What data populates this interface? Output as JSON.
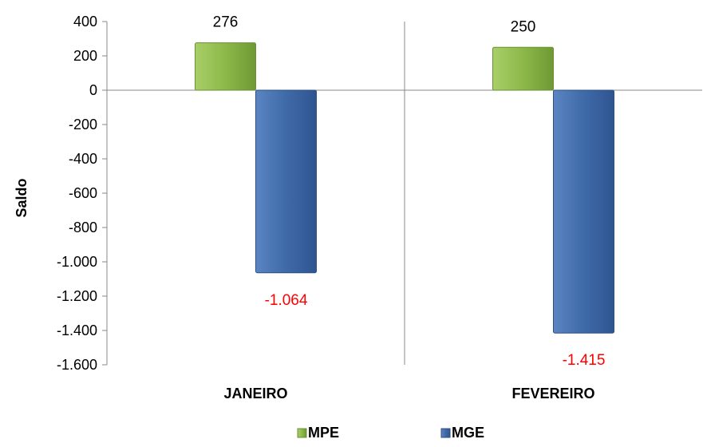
{
  "chart_data": {
    "type": "bar",
    "categories": [
      "JANEIRO",
      "FEVEREIRO"
    ],
    "series": [
      {
        "name": "MPE",
        "values": [
          276,
          250
        ],
        "color": "#8DB849",
        "data_labels": [
          "276",
          "250"
        ],
        "label_color": "#000000"
      },
      {
        "name": "MGE",
        "values": [
          -1064,
          -1415
        ],
        "color": "#3F6AA8",
        "data_labels": [
          "-1.064",
          "-1.415"
        ],
        "label_color": "#FF0000"
      }
    ],
    "title": "",
    "xlabel": "",
    "ylabel": "Saldo",
    "ylim": [
      -1600,
      400
    ],
    "yticks": [
      400,
      200,
      0,
      -200,
      -400,
      -600,
      -800,
      -1000,
      -1200,
      -1400,
      -1600
    ],
    "ytick_labels": [
      "400",
      "200",
      "0",
      "-200",
      "-400",
      "-600",
      "-800",
      "-1.000",
      "-1.200",
      "-1.400",
      "-1.600"
    ],
    "grid": false,
    "legend_position": "bottom"
  }
}
